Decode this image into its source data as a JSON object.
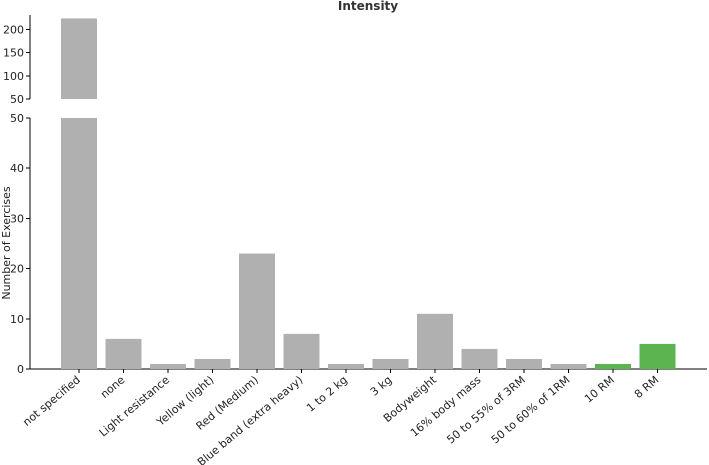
{
  "chart_data": {
    "type": "bar",
    "title": "Intensity",
    "xlabel": "",
    "ylabel": "Number of Exercises",
    "categories": [
      "not specified",
      "none",
      "Light resistance",
      "Yellow (light)",
      "Red (Medium)",
      "Blue band (extra heavy)",
      "1 to 2 kg",
      "3 kg",
      "Bodyweight",
      "16% body mass",
      "50 to 55% of 3RM",
      "50 to 60% of 1RM",
      "10 RM",
      "8 RM"
    ],
    "values": [
      224,
      6,
      1,
      2,
      23,
      7,
      1,
      2,
      11,
      4,
      2,
      1,
      1,
      5
    ],
    "colors": [
      "#b0b0b0",
      "#b0b0b0",
      "#b0b0b0",
      "#b0b0b0",
      "#b0b0b0",
      "#b0b0b0",
      "#b0b0b0",
      "#b0b0b0",
      "#b0b0b0",
      "#b0b0b0",
      "#b0b0b0",
      "#b0b0b0",
      "#5bb450",
      "#5bb450"
    ],
    "broken_axis": {
      "lower": {
        "ylim": [
          0,
          50
        ],
        "ticks": [
          0,
          10,
          20,
          30,
          40,
          50
        ]
      },
      "upper": {
        "ylim": [
          50,
          225
        ],
        "ticks": [
          50,
          100,
          150,
          200
        ]
      }
    },
    "grid": false,
    "legend": "none"
  }
}
